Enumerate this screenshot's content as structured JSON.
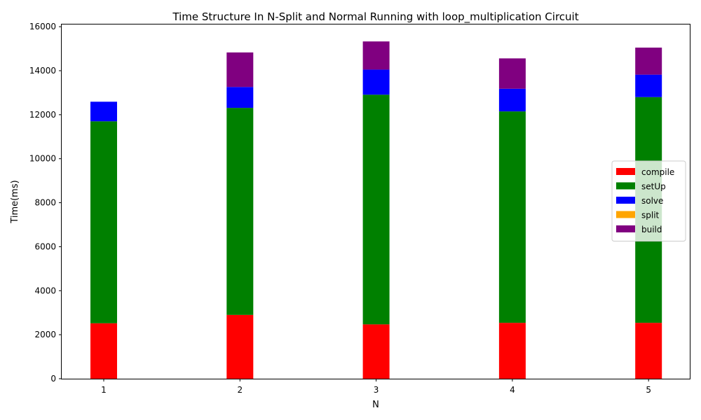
{
  "chart_data": {
    "type": "bar",
    "stacked": true,
    "title": "Time Structure In N-Split and Normal Running with loop_multiplication Circuit",
    "xlabel": "N",
    "ylabel": "Time(ms)",
    "categories": [
      "1",
      "2",
      "3",
      "4",
      "5"
    ],
    "ylim": [
      0,
      16100
    ],
    "yticks": [
      0,
      2000,
      4000,
      6000,
      8000,
      10000,
      12000,
      14000,
      16000
    ],
    "grid": false,
    "legend_position": "center-right",
    "series": [
      {
        "name": "compile",
        "color": "#ff0000",
        "values": [
          2520,
          2900,
          2470,
          2540,
          2540
        ]
      },
      {
        "name": "setUp",
        "color": "#008000",
        "values": [
          9180,
          9410,
          10440,
          9610,
          10260
        ]
      },
      {
        "name": "solve",
        "color": "#0000ff",
        "values": [
          890,
          950,
          1140,
          1030,
          1020
        ]
      },
      {
        "name": "split",
        "color": "#ffa500",
        "values": [
          0,
          0,
          0,
          0,
          0
        ]
      },
      {
        "name": "build",
        "color": "#800080",
        "values": [
          0,
          1570,
          1280,
          1380,
          1230
        ]
      }
    ]
  }
}
